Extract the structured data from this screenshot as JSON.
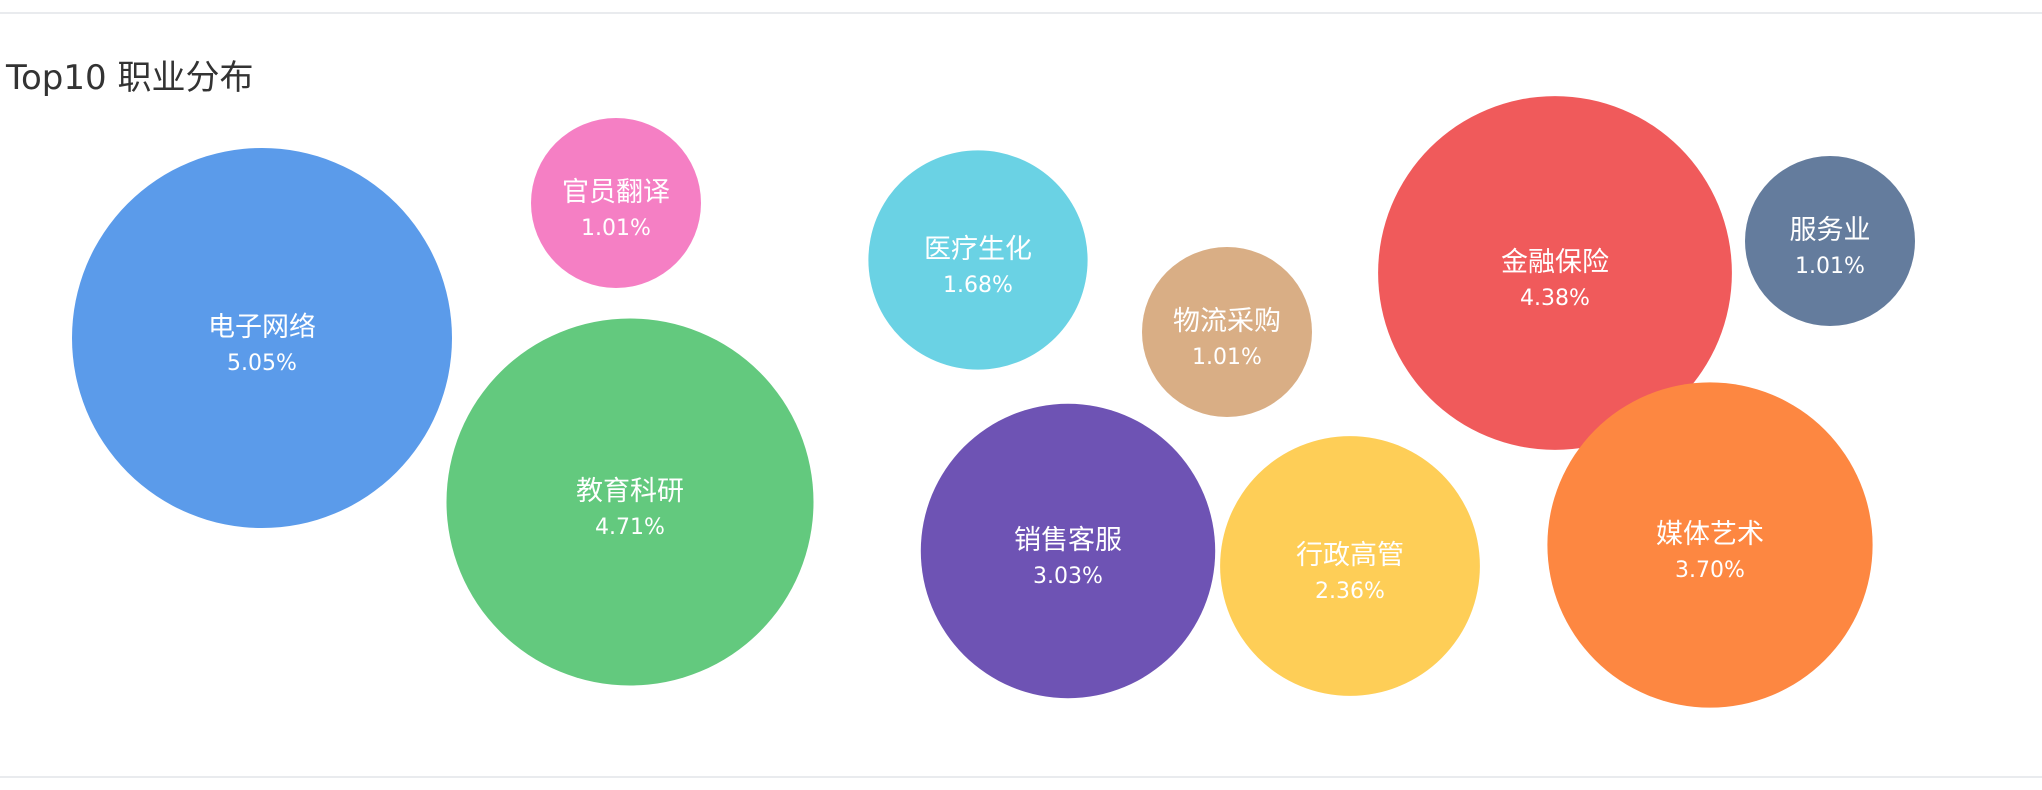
{
  "chart_data": {
    "type": "bubble",
    "title": "Top10 职业分布",
    "series": [
      {
        "name": "电子网络",
        "value": "5.05%",
        "share": 5.05,
        "color": "#5b9bea"
      },
      {
        "name": "官员翻译",
        "value": "1.01%",
        "share": 1.01,
        "color": "#f57fc4"
      },
      {
        "name": "教育科研",
        "value": "4.71%",
        "share": 4.71,
        "color": "#63c97e"
      },
      {
        "name": "医疗生化",
        "value": "1.68%",
        "share": 1.68,
        "color": "#6ad2e4"
      },
      {
        "name": "物流采购",
        "value": "1.01%",
        "share": 1.01,
        "color": "#d9ae85"
      },
      {
        "name": "销售客服",
        "value": "3.03%",
        "share": 3.03,
        "color": "#6e53b4"
      },
      {
        "name": "行政高管",
        "value": "2.36%",
        "share": 2.36,
        "color": "#fece57"
      },
      {
        "name": "金融保险",
        "value": "4.38%",
        "share": 4.38,
        "color": "#f05a5b"
      },
      {
        "name": "服务业",
        "value": "1.01%",
        "share": 1.01,
        "color": "#647c9d"
      },
      {
        "name": "媒体艺术",
        "value": "3.70%",
        "share": 3.7,
        "color": "#fd8741"
      }
    ]
  }
}
